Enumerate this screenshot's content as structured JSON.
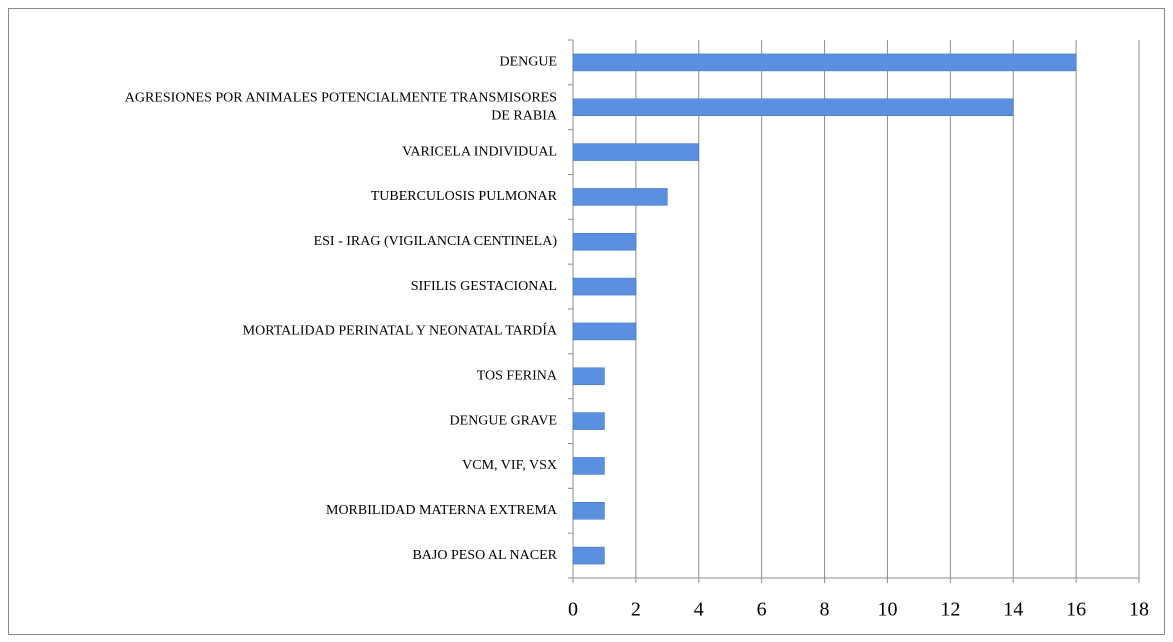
{
  "chart_data": {
    "type": "bar",
    "orientation": "horizontal",
    "categories": [
      "DENGUE",
      "AGRESIONES POR ANIMALES POTENCIALMENTE TRANSMISORES DE RABIA",
      "VARICELA INDIVIDUAL",
      "TUBERCULOSIS PULMONAR",
      "ESI - IRAG (VIGILANCIA CENTINELA)",
      "SIFILIS GESTACIONAL",
      "MORTALIDAD PERINATAL Y NEONATAL TARDÍA",
      "TOS FERINA",
      "DENGUE GRAVE",
      "VCM, VIF, VSX",
      "MORBILIDAD MATERNA EXTREMA",
      "BAJO PESO AL NACER"
    ],
    "values": [
      16,
      14,
      4,
      3,
      2,
      2,
      2,
      1,
      1,
      1,
      1,
      1
    ],
    "color": "#5b8fe0",
    "xlim": [
      0,
      18
    ],
    "xticks": [
      0,
      2,
      4,
      6,
      8,
      10,
      12,
      14,
      16,
      18
    ],
    "grid": true
  }
}
